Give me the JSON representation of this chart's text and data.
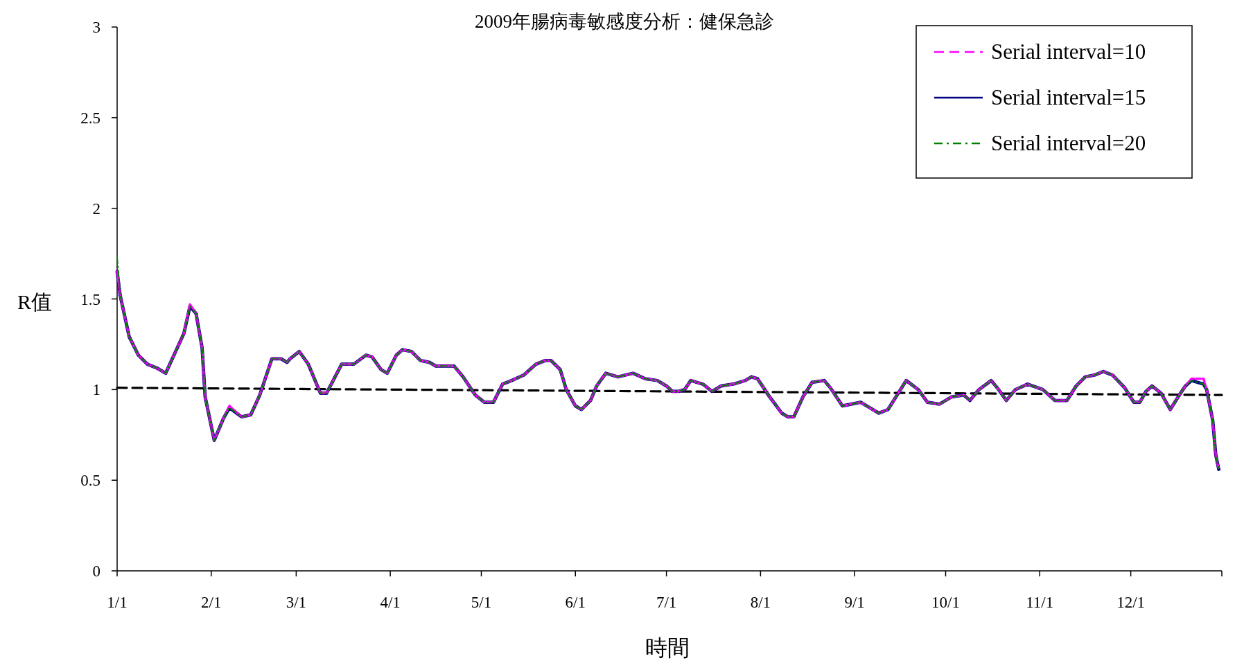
{
  "chart_data": {
    "type": "line",
    "title": "2009年腸病毒敏感度分析：健保急診",
    "xlabel": "時間",
    "ylabel": "R值",
    "x": [
      "--01-01",
      "--01-02",
      "--01-05",
      "--01-08",
      "--01-11",
      "--01-14",
      "--01-17",
      "--01-20",
      "--01-23",
      "--01-25",
      "--01-27",
      "--01-29",
      "--01-30",
      "--02-02",
      "--02-05",
      "--02-07",
      "--02-11",
      "--02-14",
      "--02-17",
      "--02-21",
      "--02-24",
      "--02-26",
      "--02-27",
      "--03-02",
      "--03-05",
      "--03-09",
      "--03-11",
      "--03-16",
      "--03-20",
      "--03-24",
      "--03-26",
      "--03-29",
      "--03-31",
      "--04-03",
      "--04-05",
      "--04-08",
      "--04-11",
      "--04-14",
      "--04-16",
      "--04-22",
      "--04-25",
      "--04-29",
      "--05-02",
      "--05-05",
      "--05-08",
      "--05-11",
      "--05-15",
      "--05-19",
      "--05-22",
      "--05-24",
      "--05-27",
      "--05-29",
      "--06-01",
      "--06-03",
      "--06-06",
      "--06-08",
      "--06-11",
      "--06-15",
      "--06-20",
      "--06-24",
      "--06-28",
      "--07-01",
      "--07-03",
      "--07-05",
      "--07-07",
      "--07-09",
      "--07-13",
      "--07-16",
      "--07-19",
      "--07-23",
      "--07-27",
      "--07-29",
      "--07-31",
      "--08-04",
      "--08-08",
      "--08-10",
      "--08-12",
      "--08-15",
      "--08-18",
      "--08-22",
      "--08-24",
      "--08-28",
      "--09-03",
      "--09-06",
      "--09-09",
      "--09-12",
      "--09-15",
      "--09-18",
      "--09-22",
      "--09-25",
      "--09-29",
      "--10-03",
      "--10-07",
      "--10-09",
      "--10-12",
      "--10-16",
      "--10-18",
      "--10-21",
      "--10-24",
      "--10-28",
      "--11-02",
      "--11-06",
      "--11-10",
      "--11-13",
      "--11-16",
      "--11-19",
      "--11-22",
      "--11-25",
      "--11-29",
      "--12-02",
      "--12-04",
      "--12-06",
      "--12-08",
      "--12-11",
      "--12-14",
      "--12-17",
      "--12-19",
      "--12-21",
      "--12-25",
      "--12-26",
      "--12-28",
      "--12-29",
      "--12-30"
    ],
    "series": [
      {
        "name": "Serial interval=10",
        "color": "#ff00ff",
        "line_style": "dashed",
        "values": [
          1.65,
          1.52,
          1.29,
          1.19,
          1.14,
          1.12,
          1.09,
          1.2,
          1.31,
          1.47,
          1.42,
          1.23,
          0.96,
          0.72,
          0.84,
          0.91,
          0.85,
          0.86,
          0.97,
          1.17,
          1.17,
          1.15,
          1.17,
          1.21,
          1.14,
          0.98,
          0.98,
          1.14,
          1.14,
          1.19,
          1.18,
          1.11,
          1.09,
          1.19,
          1.22,
          1.21,
          1.16,
          1.15,
          1.13,
          1.13,
          1.07,
          0.97,
          0.93,
          0.93,
          1.03,
          1.05,
          1.08,
          1.14,
          1.16,
          1.16,
          1.11,
          1.0,
          0.91,
          0.89,
          0.94,
          1.02,
          1.09,
          1.07,
          1.09,
          1.06,
          1.05,
          1.02,
          0.99,
          0.99,
          1.0,
          1.05,
          1.03,
          0.99,
          1.02,
          1.03,
          1.05,
          1.07,
          1.06,
          0.96,
          0.87,
          0.85,
          0.85,
          0.96,
          1.04,
          1.05,
          1.01,
          0.91,
          0.93,
          0.9,
          0.87,
          0.89,
          0.97,
          1.05,
          1.0,
          0.93,
          0.92,
          0.96,
          0.97,
          0.94,
          1.0,
          1.05,
          1.01,
          0.94,
          1.0,
          1.03,
          1.0,
          0.94,
          0.94,
          1.02,
          1.07,
          1.08,
          1.1,
          1.08,
          1.01,
          0.93,
          0.93,
          0.99,
          1.02,
          0.98,
          0.89,
          0.97,
          1.02,
          1.06,
          1.06,
          1.0,
          0.83,
          0.64,
          0.56
        ]
      },
      {
        "name": "Serial interval=15",
        "color": "#000080",
        "line_style": "solid",
        "values": [
          1.65,
          1.52,
          1.29,
          1.19,
          1.14,
          1.12,
          1.09,
          1.2,
          1.31,
          1.46,
          1.42,
          1.23,
          0.96,
          0.72,
          0.84,
          0.9,
          0.85,
          0.86,
          0.97,
          1.17,
          1.17,
          1.15,
          1.17,
          1.21,
          1.14,
          0.98,
          0.98,
          1.14,
          1.14,
          1.19,
          1.18,
          1.11,
          1.09,
          1.19,
          1.22,
          1.21,
          1.16,
          1.15,
          1.13,
          1.13,
          1.07,
          0.97,
          0.93,
          0.93,
          1.03,
          1.05,
          1.08,
          1.14,
          1.16,
          1.16,
          1.11,
          1.0,
          0.91,
          0.89,
          0.94,
          1.02,
          1.09,
          1.07,
          1.09,
          1.06,
          1.05,
          1.02,
          0.99,
          0.99,
          1.0,
          1.05,
          1.03,
          0.99,
          1.02,
          1.03,
          1.05,
          1.07,
          1.06,
          0.96,
          0.87,
          0.85,
          0.85,
          0.96,
          1.04,
          1.05,
          1.01,
          0.91,
          0.93,
          0.9,
          0.87,
          0.89,
          0.97,
          1.05,
          1.0,
          0.93,
          0.92,
          0.96,
          0.97,
          0.94,
          1.0,
          1.05,
          1.01,
          0.94,
          1.0,
          1.03,
          1.0,
          0.94,
          0.94,
          1.02,
          1.07,
          1.08,
          1.1,
          1.08,
          1.01,
          0.93,
          0.93,
          0.99,
          1.02,
          0.98,
          0.89,
          0.97,
          1.02,
          1.05,
          1.03,
          1.0,
          0.83,
          0.64,
          0.56
        ]
      },
      {
        "name": "Serial interval=20",
        "color": "#008000",
        "line_style": "dashdot",
        "values": [
          1.73,
          1.52,
          1.29,
          1.19,
          1.14,
          1.12,
          1.09,
          1.2,
          1.31,
          1.46,
          1.42,
          1.23,
          0.96,
          0.72,
          0.84,
          0.9,
          0.85,
          0.86,
          0.97,
          1.17,
          1.17,
          1.15,
          1.17,
          1.21,
          1.14,
          0.98,
          0.98,
          1.14,
          1.14,
          1.19,
          1.18,
          1.11,
          1.09,
          1.19,
          1.22,
          1.21,
          1.16,
          1.15,
          1.13,
          1.13,
          1.07,
          0.97,
          0.93,
          0.93,
          1.03,
          1.05,
          1.08,
          1.14,
          1.16,
          1.16,
          1.11,
          1.0,
          0.91,
          0.89,
          0.94,
          1.02,
          1.09,
          1.07,
          1.09,
          1.06,
          1.05,
          1.02,
          0.99,
          0.99,
          1.0,
          1.05,
          1.03,
          0.99,
          1.02,
          1.03,
          1.05,
          1.07,
          1.06,
          0.96,
          0.87,
          0.85,
          0.85,
          0.96,
          1.04,
          1.05,
          1.01,
          0.91,
          0.93,
          0.9,
          0.87,
          0.89,
          0.97,
          1.05,
          1.0,
          0.93,
          0.92,
          0.96,
          0.97,
          0.94,
          1.0,
          1.05,
          1.01,
          0.94,
          1.0,
          1.03,
          1.0,
          0.94,
          0.94,
          1.02,
          1.07,
          1.08,
          1.1,
          1.08,
          1.01,
          0.93,
          0.93,
          0.99,
          1.02,
          0.98,
          0.89,
          0.97,
          1.02,
          1.05,
          1.03,
          1.0,
          0.83,
          0.64,
          0.56
        ]
      },
      {
        "type": "line",
        "color": "#000000",
        "line_style": "dashed",
        "x": [
          "--01-01",
          "--12-31"
        ],
        "values": [
          1.01,
          0.97
        ]
      }
    ],
    "xlim": [
      "--01-01",
      "--12-31"
    ],
    "xticks": [
      {
        "value": "--01-01",
        "label": "1/1"
      },
      {
        "value": "--02-01",
        "label": "2/1"
      },
      {
        "value": "--03-01",
        "label": "3/1"
      },
      {
        "value": "--04-01",
        "label": "4/1"
      },
      {
        "value": "--05-01",
        "label": "5/1"
      },
      {
        "value": "--06-01",
        "label": "6/1"
      },
      {
        "value": "--07-01",
        "label": "7/1"
      },
      {
        "value": "--08-01",
        "label": "8/1"
      },
      {
        "value": "--09-01",
        "label": "9/1"
      },
      {
        "value": "--10-01",
        "label": "10/1"
      },
      {
        "value": "--11-01",
        "label": "11/1"
      },
      {
        "value": "--12-01",
        "label": "12/1"
      },
      {
        "value": "--12-31",
        "label": null
      }
    ],
    "ylim": [
      0,
      3
    ],
    "yticks": [
      0,
      0.5,
      1,
      1.5,
      2,
      2.5,
      3
    ],
    "legend": "top right"
  }
}
